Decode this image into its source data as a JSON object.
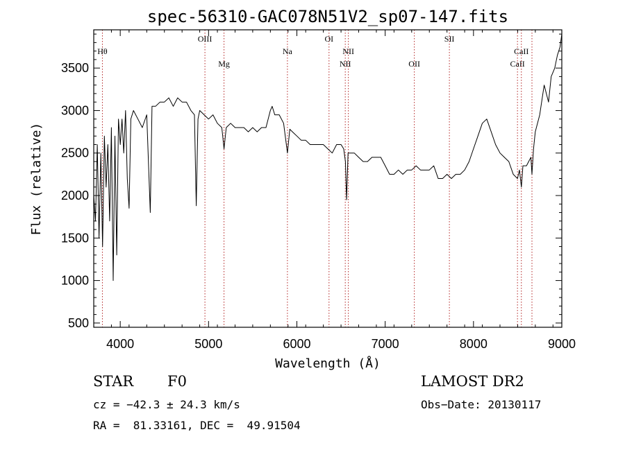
{
  "chart_data": {
    "type": "line",
    "title": "spec-56310-GAC078N51V2_sp07-147.fits",
    "xlabel": "Wavelength (Å)",
    "ylabel": "Flux (relative)",
    "xlim": [
      3700,
      9000
    ],
    "ylim": [
      450,
      3950
    ],
    "xticks": [
      4000,
      5000,
      6000,
      7000,
      8000,
      9000
    ],
    "yticks": [
      500,
      1000,
      1500,
      2000,
      2500,
      3000,
      3500
    ],
    "grid": false,
    "line_color": "#000000",
    "marker_color": "#b22222",
    "spectral_lines": [
      {
        "name": "Hθ",
        "wavelength": 3798,
        "label_row": 1
      },
      {
        "name": "OIII",
        "wavelength": 4959,
        "label_row": 0
      },
      {
        "name": "Mg",
        "wavelength": 5175,
        "label_row": 2
      },
      {
        "name": "Na",
        "wavelength": 5893,
        "label_row": 1
      },
      {
        "name": "OI",
        "wavelength": 6364,
        "label_row": 0
      },
      {
        "name": "NII",
        "wavelength": 6548,
        "label_row": 2
      },
      {
        "name": "NII",
        "wavelength": 6583,
        "label_row": 1
      },
      {
        "name": "OII",
        "wavelength": 7330,
        "label_row": 2
      },
      {
        "name": "SII",
        "wavelength": 7727,
        "label_row": 0
      },
      {
        "name": "CaII",
        "wavelength": 8498,
        "label_row": 2
      },
      {
        "name": "CaII",
        "wavelength": 8542,
        "label_row": 1
      },
      {
        "name": "",
        "wavelength": 8662,
        "label_row": 0
      }
    ],
    "series": [
      {
        "x": [
          3700,
          3720,
          3740,
          3760,
          3780,
          3800,
          3820,
          3840,
          3860,
          3880,
          3900,
          3920,
          3940,
          3960,
          3980,
          4000,
          4020,
          4040,
          4060,
          4080,
          4100,
          4120,
          4150,
          4200,
          4250,
          4300,
          4340,
          4360,
          4400,
          4450,
          4500,
          4550,
          4600,
          4650,
          4700,
          4750,
          4800,
          4840,
          4861,
          4880,
          4900,
          4950,
          5000,
          5050,
          5100,
          5150,
          5175,
          5200,
          5250,
          5300,
          5350,
          5400,
          5450,
          5500,
          5550,
          5600,
          5650,
          5700,
          5720,
          5750,
          5800,
          5850,
          5893,
          5920,
          5950,
          6000,
          6050,
          6100,
          6150,
          6200,
          6250,
          6300,
          6350,
          6400,
          6450,
          6500,
          6530,
          6550,
          6563,
          6580,
          6600,
          6650,
          6700,
          6750,
          6800,
          6850,
          6900,
          6950,
          7000,
          7050,
          7100,
          7150,
          7200,
          7250,
          7300,
          7350,
          7400,
          7450,
          7500,
          7550,
          7600,
          7650,
          7700,
          7750,
          7800,
          7850,
          7900,
          7950,
          8000,
          8050,
          8100,
          8150,
          8200,
          8250,
          8300,
          8350,
          8400,
          8450,
          8498,
          8520,
          8542,
          8560,
          8600,
          8650,
          8662,
          8680,
          8700,
          8750,
          8800,
          8850,
          8880,
          8900,
          8920,
          8950,
          8980,
          9000
        ],
        "y": [
          2000,
          1700,
          2600,
          1500,
          2500,
          1400,
          2700,
          2100,
          2600,
          1700,
          2800,
          1000,
          2700,
          1300,
          2900,
          2600,
          2900,
          2500,
          3000,
          2200,
          1850,
          2900,
          3000,
          2900,
          2800,
          2950,
          1800,
          3050,
          3050,
          3100,
          3100,
          3150,
          3050,
          3150,
          3100,
          3100,
          3000,
          2950,
          1880,
          2900,
          3000,
          2950,
          2900,
          2950,
          2850,
          2800,
          2550,
          2800,
          2850,
          2800,
          2800,
          2800,
          2750,
          2800,
          2750,
          2800,
          2800,
          3000,
          3050,
          2950,
          2950,
          2850,
          2500,
          2780,
          2750,
          2700,
          2650,
          2650,
          2600,
          2600,
          2600,
          2600,
          2550,
          2500,
          2600,
          2600,
          2550,
          2400,
          1950,
          2500,
          2500,
          2500,
          2450,
          2400,
          2400,
          2450,
          2450,
          2450,
          2350,
          2250,
          2250,
          2300,
          2250,
          2300,
          2300,
          2350,
          2300,
          2300,
          2300,
          2350,
          2200,
          2200,
          2250,
          2200,
          2250,
          2250,
          2300,
          2400,
          2550,
          2700,
          2850,
          2900,
          2750,
          2600,
          2500,
          2450,
          2400,
          2250,
          2200,
          2300,
          2100,
          2350,
          2350,
          2450,
          2250,
          2550,
          2750,
          2950,
          3300,
          3100,
          3400,
          3450,
          3500,
          3650,
          3750,
          3900
        ]
      }
    ]
  },
  "info": {
    "object_type": "STAR",
    "subclass": "F0",
    "survey": "LAMOST DR2",
    "cz": "cz = −42.3 ± 24.3 km/s",
    "obs_date": "Obs−Date: 20130117",
    "coords": "RA =  81.33161, DEC =  49.91504"
  }
}
